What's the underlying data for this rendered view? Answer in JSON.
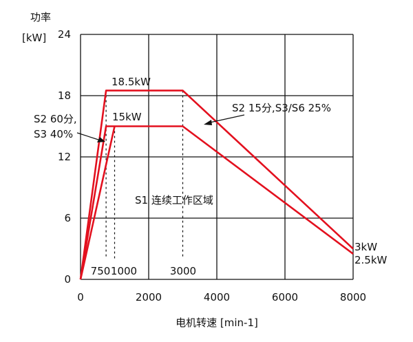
{
  "chart_data": {
    "type": "line",
    "title": "",
    "xlabel": "电机转速 [min-1]",
    "ylabel_line1": "功率",
    "ylabel_line2": "[kW]",
    "xlim": [
      0,
      8000
    ],
    "ylim": [
      0,
      24
    ],
    "x_ticks": [
      0,
      2000,
      4000,
      6000,
      8000
    ],
    "y_ticks": [
      0,
      6,
      12,
      18,
      24
    ],
    "grid": true,
    "series": [
      {
        "name": "S2 15分,S3/S6 25%",
        "color": "#e3101e",
        "points": [
          [
            0,
            0
          ],
          [
            750,
            18.5
          ],
          [
            3000,
            18.5
          ],
          [
            8000,
            3
          ]
        ]
      },
      {
        "name": "S2 60分, S3 40%",
        "color": "#e3101e",
        "points": [
          [
            0,
            0
          ],
          [
            750,
            15
          ],
          [
            1000,
            15
          ],
          [
            3000,
            15
          ],
          [
            8000,
            2.5
          ]
        ]
      },
      {
        "name": "S1 连续工作区域",
        "color": "#e3101e",
        "points": [
          [
            0,
            0
          ],
          [
            1000,
            15
          ]
        ]
      }
    ],
    "vlines": [
      {
        "x": 750,
        "label": "750",
        "y_top": 18.5
      },
      {
        "x": 1000,
        "label": "1000",
        "y_top": 15
      },
      {
        "x": 3000,
        "label": "3000",
        "y_top": 18.5
      }
    ],
    "annotations": {
      "peak_top": "18.5kW",
      "peak_mid": "15kW",
      "s2_60_line1": "S2 60分,",
      "s2_60_line2": "S3 40%",
      "s2_15": "S2 15分,S3/S6 25%",
      "s1": "S1 连续工作区域",
      "end_top": "3kW",
      "end_bottom": "2.5kW"
    }
  }
}
